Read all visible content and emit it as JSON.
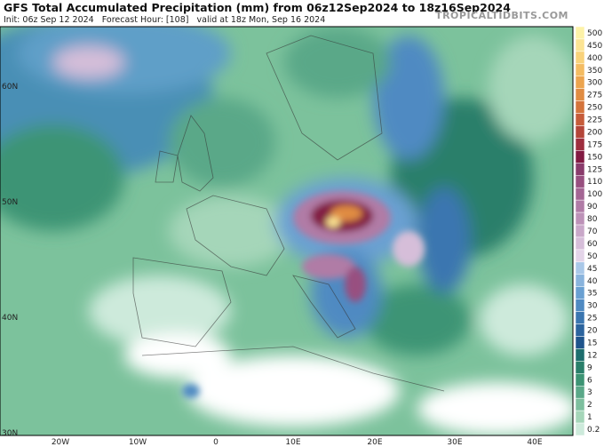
{
  "header": {
    "title": "GFS Total Accumulated Precipitation (mm) from 06z12Sep2024 to 18z16Sep2024",
    "subtitle": "Init: 06z Sep 12 2024   Forecast Hour: [108]   valid at 18z Mon, Sep 16 2024",
    "watermark": "TROPICALTIDBITS.COM"
  },
  "map": {
    "lat_labels": [
      "60N",
      "50N",
      "40N",
      "30N"
    ],
    "lon_labels": [
      "20W",
      "10W",
      "0",
      "10E",
      "20E",
      "30E",
      "40E"
    ]
  },
  "colorbar": [
    {
      "label": "500",
      "color": "#fdf2a8"
    },
    {
      "label": "450",
      "color": "#fce493"
    },
    {
      "label": "400",
      "color": "#f9d27a"
    },
    {
      "label": "350",
      "color": "#f4bc62"
    },
    {
      "label": "300",
      "color": "#eca44e"
    },
    {
      "label": "275",
      "color": "#e08c42"
    },
    {
      "label": "250",
      "color": "#d4743c"
    },
    {
      "label": "225",
      "color": "#c65c3a"
    },
    {
      "label": "200",
      "color": "#b4463a"
    },
    {
      "label": "175",
      "color": "#9e2e3e"
    },
    {
      "label": "150",
      "color": "#821a42"
    },
    {
      "label": "125",
      "color": "#8a3c6c"
    },
    {
      "label": "110",
      "color": "#985080"
    },
    {
      "label": "100",
      "color": "#a46694"
    },
    {
      "label": "90",
      "color": "#b07ca6"
    },
    {
      "label": "80",
      "color": "#bd92b8"
    },
    {
      "label": "70",
      "color": "#c9a8c9"
    },
    {
      "label": "60",
      "color": "#d6bed9"
    },
    {
      "label": "50",
      "color": "#e3d4e8"
    },
    {
      "label": "45",
      "color": "#a9c8e8"
    },
    {
      "label": "40",
      "color": "#8ab4dd"
    },
    {
      "label": "35",
      "color": "#6aa0d2"
    },
    {
      "label": "30",
      "color": "#4f8ac2"
    },
    {
      "label": "25",
      "color": "#3b76b0"
    },
    {
      "label": "20",
      "color": "#2c649e"
    },
    {
      "label": "15",
      "color": "#1f548c"
    },
    {
      "label": "12",
      "color": "#1e6e6e"
    },
    {
      "label": "9",
      "color": "#2a7f6a"
    },
    {
      "label": "6",
      "color": "#3d9474"
    },
    {
      "label": "3",
      "color": "#5aa888"
    },
    {
      "label": "2",
      "color": "#7dbf9e"
    },
    {
      "label": "1",
      "color": "#a5d6b9"
    },
    {
      "label": "0.2",
      "color": "#cdeadb"
    }
  ]
}
